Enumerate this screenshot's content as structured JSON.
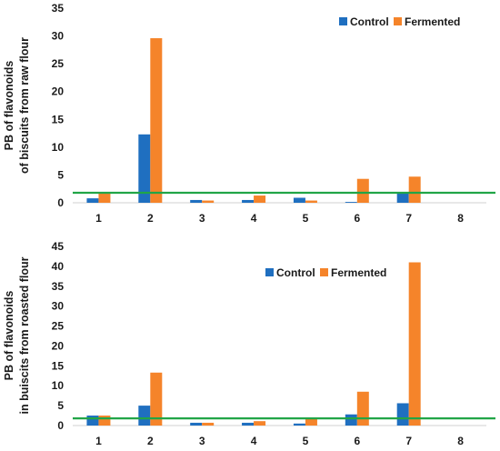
{
  "colors": {
    "control": "#1f6fc0",
    "fermented": "#f5842a",
    "threshold": "#21a547"
  },
  "chart_data": [
    {
      "type": "bar",
      "categories": [
        "1",
        "2",
        "3",
        "4",
        "5",
        "6",
        "7",
        "8"
      ],
      "series": [
        {
          "name": "Control",
          "values": [
            0.8,
            12.3,
            0.5,
            0.5,
            0.9,
            0.15,
            1.7,
            0
          ]
        },
        {
          "name": "Fermented",
          "values": [
            1.7,
            29.6,
            0.4,
            1.3,
            0.4,
            4.3,
            4.7,
            0
          ]
        }
      ],
      "ylabel_lines": [
        "PB of flavonoids",
        "of biscuits from raw flour"
      ],
      "ylim": [
        0,
        35
      ],
      "yticks": [
        0,
        5,
        10,
        15,
        20,
        25,
        30,
        35
      ],
      "threshold": 1.8,
      "grid": false,
      "legend": "top-right"
    },
    {
      "type": "bar",
      "categories": [
        "1",
        "2",
        "3",
        "4",
        "5",
        "6",
        "7",
        "8"
      ],
      "series": [
        {
          "name": "Control",
          "values": [
            2.5,
            5.0,
            0.7,
            0.7,
            0.5,
            2.8,
            5.6,
            0
          ]
        },
        {
          "name": "Fermented",
          "values": [
            2.5,
            13.3,
            0.7,
            1.1,
            1.9,
            8.5,
            41.0,
            0
          ]
        }
      ],
      "ylabel_lines": [
        "PB of flavonoids",
        "in buiscits from roasted flour"
      ],
      "ylim": [
        0,
        45
      ],
      "yticks": [
        0,
        5,
        10,
        15,
        20,
        25,
        30,
        35,
        40,
        45
      ],
      "threshold": 1.8,
      "grid": false,
      "legend": "top-center"
    }
  ]
}
